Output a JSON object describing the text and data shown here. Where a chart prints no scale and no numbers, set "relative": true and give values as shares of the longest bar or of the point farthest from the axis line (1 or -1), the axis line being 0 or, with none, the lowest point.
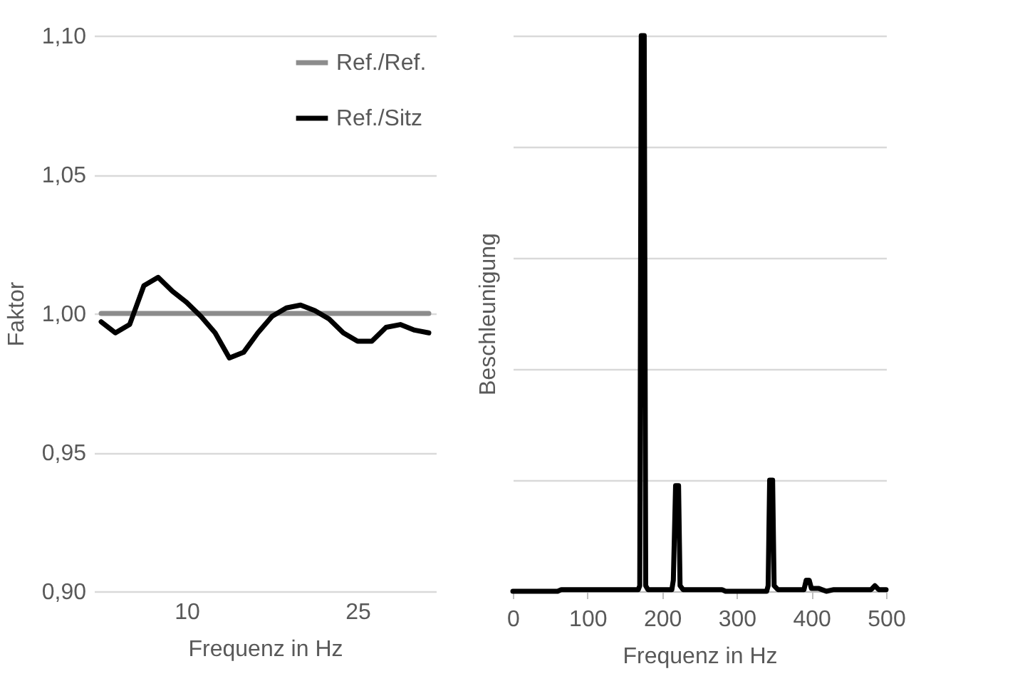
{
  "chart_data": [
    {
      "type": "line",
      "xlabel": "Frequenz in Hz",
      "ylabel": "Faktor",
      "categories": [
        null,
        null,
        null,
        null,
        null,
        null,
        "10",
        null,
        null,
        null,
        null,
        null,
        null,
        null,
        null,
        null,
        null,
        null,
        "25",
        null,
        null,
        null,
        null,
        null
      ],
      "series": [
        {
          "name": "Ref./Ref.",
          "color": "#8c8c8c",
          "values": [
            1,
            1,
            1,
            1,
            1,
            1,
            1,
            1,
            1,
            1,
            1,
            1,
            1,
            1,
            1,
            1,
            1,
            1,
            1,
            1,
            1,
            1,
            1,
            1
          ]
        },
        {
          "name": "Ref./Sitz",
          "color": "#000000",
          "values": [
            0.997,
            0.993,
            0.996,
            1.01,
            1.013,
            1.008,
            1.004,
            0.999,
            0.993,
            0.984,
            0.986,
            0.993,
            0.999,
            1.002,
            1.003,
            1.001,
            0.998,
            0.993,
            0.99,
            0.99,
            0.995,
            0.996,
            0.994,
            0.993
          ]
        }
      ],
      "ylim": [
        0.9,
        1.1
      ],
      "yticks": [
        {
          "value": 0.9,
          "label": "0,90"
        },
        {
          "value": 0.95,
          "label": "0,95"
        },
        {
          "value": 1.0,
          "label": "1,00"
        },
        {
          "value": 1.05,
          "label": "1,05"
        },
        {
          "value": 1.1,
          "label": "1,10"
        }
      ],
      "grid": "y",
      "legend": "top right"
    },
    {
      "type": "line",
      "xlabel": "Frequenz in Hz",
      "ylabel": "Beschleunigung",
      "relative": true,
      "xlim": [
        0,
        500
      ],
      "xticks": [
        0,
        100,
        200,
        300,
        400,
        500
      ],
      "grid": "y",
      "tick_labels": "x",
      "x": [
        0,
        60,
        65,
        168,
        170,
        172,
        176,
        178,
        181,
        213,
        215,
        218,
        222,
        224,
        228,
        280,
        285,
        340,
        342,
        344,
        348,
        350,
        355,
        390,
        393,
        397,
        400,
        410,
        420,
        430,
        470,
        480,
        485,
        490,
        500
      ],
      "series": [
        {
          "color": "#000000",
          "values": [
            0,
            0,
            0.003,
            0.003,
            0.01,
            1,
            1,
            0.01,
            0.003,
            0.003,
            0.02,
            0.19,
            0.19,
            0.01,
            0.003,
            0.003,
            0,
            0,
            0.01,
            0.2,
            0.2,
            0.01,
            0.003,
            0.003,
            0.02,
            0.02,
            0.005,
            0.005,
            0,
            0.003,
            0.003,
            0.003,
            0.01,
            0.003,
            0.003
          ]
        }
      ]
    }
  ]
}
